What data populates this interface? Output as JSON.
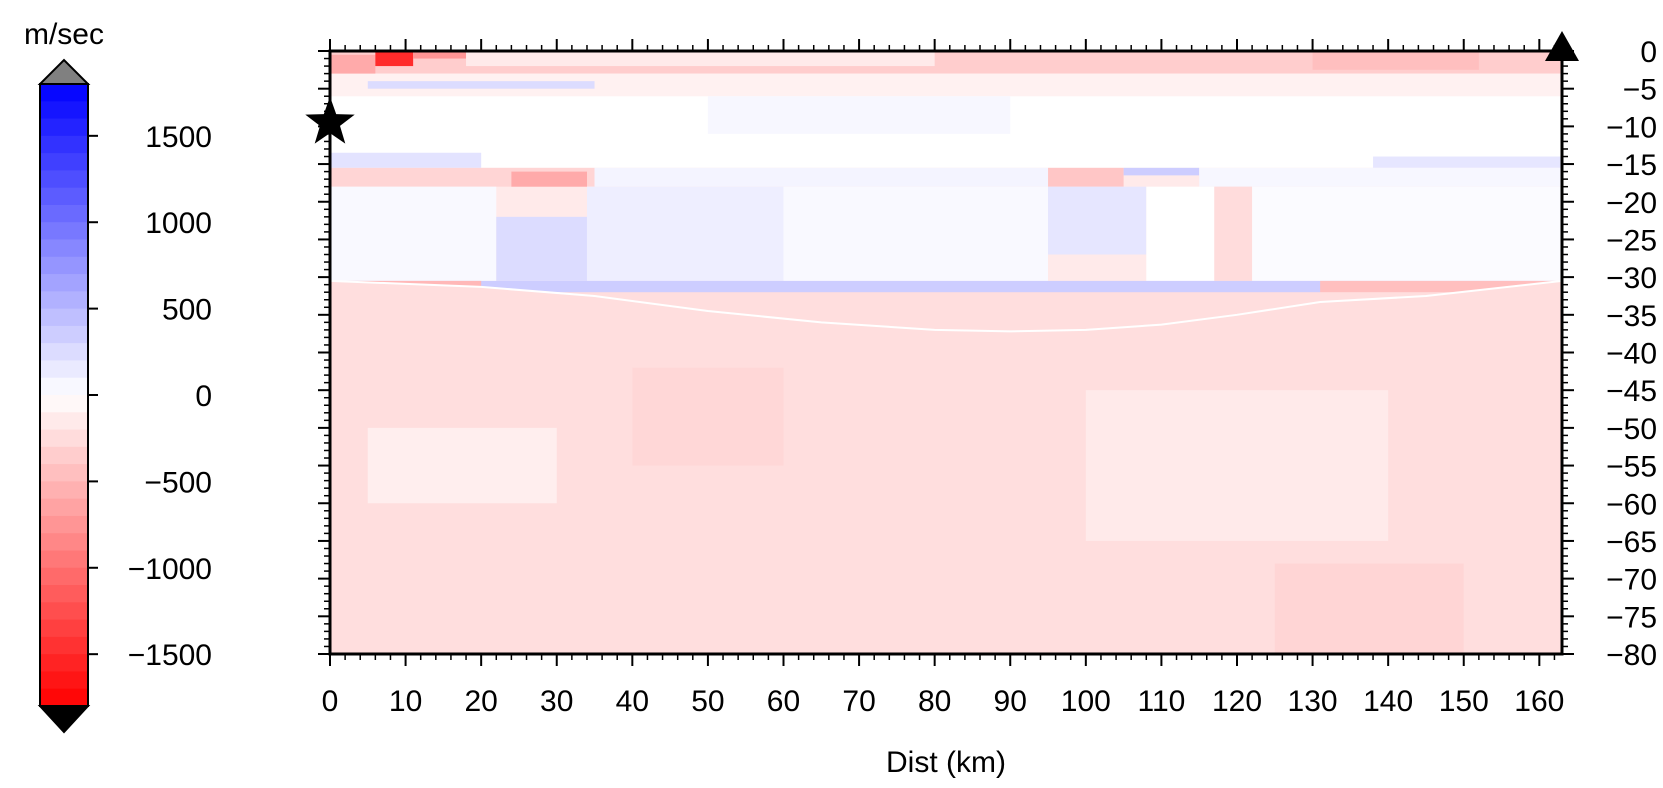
{
  "colorbar": {
    "unit_label": "m/sec",
    "range": [
      -1800,
      1800
    ],
    "ticks": [
      1500,
      1000,
      500,
      0,
      -500,
      -1000,
      -1500
    ],
    "tick_labels": [
      "1500",
      "1000",
      "500",
      "0",
      "−500",
      "−1000",
      "−1500"
    ],
    "high_color": "#0000ff",
    "mid_color": "#ffffff",
    "low_color": "#ff0000",
    "over_color": "#808080",
    "under_color": "#000000"
  },
  "chart_data": {
    "type": "heatmap",
    "title": "",
    "xlabel": "Dist (km)",
    "ylabel": "",
    "xlim": [
      0,
      163
    ],
    "ylim": [
      -80,
      0
    ],
    "x_ticks": [
      0,
      10,
      20,
      30,
      40,
      50,
      60,
      70,
      80,
      90,
      100,
      110,
      120,
      130,
      140,
      150,
      160
    ],
    "x_tick_labels": [
      "0",
      "10",
      "20",
      "30",
      "40",
      "50",
      "60",
      "70",
      "80",
      "90",
      "100",
      "110",
      "120",
      "130",
      "140",
      "150",
      "160"
    ],
    "y_ticks": [
      0,
      -5,
      -10,
      -15,
      -20,
      -25,
      -30,
      -35,
      -40,
      -45,
      -50,
      -55,
      -60,
      -65,
      -70,
      -75,
      -80
    ],
    "y_tick_labels": [
      "0",
      "−5",
      "−10",
      "−15",
      "−20",
      "−25",
      "−30",
      "−35",
      "−40",
      "−45",
      "−50",
      "−55",
      "−60",
      "−65",
      "−70",
      "−75",
      "−80"
    ],
    "y_axis_side": "right",
    "markers": [
      {
        "symbol": "star",
        "x": 0,
        "y": -9.5
      },
      {
        "symbol": "triangle",
        "x": 163,
        "y": 0
      }
    ],
    "moho_boundary": {
      "x": [
        0,
        20,
        35,
        50,
        65,
        80,
        90,
        100,
        110,
        120,
        131,
        145,
        163
      ],
      "y": [
        -30.5,
        -31.3,
        -32.5,
        -34.5,
        -36.0,
        -37.0,
        -37.2,
        -37.0,
        -36.3,
        -35.0,
        -33.3,
        -32.5,
        -30.5
      ]
    },
    "cells": [
      {
        "x0": 0,
        "x1": 163,
        "y0": -3,
        "y1": 0,
        "v": -350
      },
      {
        "x0": 0,
        "x1": 6,
        "y0": -4.5,
        "y1": -0.5,
        "v": -600
      },
      {
        "x0": 6,
        "x1": 11,
        "y0": -2,
        "y1": 0,
        "v": -1500
      },
      {
        "x0": 11,
        "x1": 18,
        "y0": -1,
        "y1": 0,
        "v": -750
      },
      {
        "x0": 18,
        "x1": 80,
        "y0": -2,
        "y1": 0,
        "v": -150
      },
      {
        "x0": 130,
        "x1": 152,
        "y0": -2.5,
        "y1": 0,
        "v": -450
      },
      {
        "x0": 0,
        "x1": 163,
        "y0": -6,
        "y1": -3,
        "v": -100
      },
      {
        "x0": 5,
        "x1": 35,
        "y0": -5,
        "y1": -4,
        "v": 250
      },
      {
        "x0": 0,
        "x1": 163,
        "y0": -15.5,
        "y1": -6,
        "v": 0
      },
      {
        "x0": 0,
        "x1": 20,
        "y0": -15.5,
        "y1": -13.5,
        "v": 200
      },
      {
        "x0": 50,
        "x1": 90,
        "y0": -11,
        "y1": -6,
        "v": 60
      },
      {
        "x0": 138,
        "x1": 163,
        "y0": -15.5,
        "y1": -14,
        "v": 180
      },
      {
        "x0": 0,
        "x1": 35,
        "y0": -18,
        "y1": -15.5,
        "v": -300
      },
      {
        "x0": 24,
        "x1": 34,
        "y0": -18,
        "y1": -16,
        "v": -600
      },
      {
        "x0": 35,
        "x1": 95,
        "y0": -18,
        "y1": -15.5,
        "v": 80
      },
      {
        "x0": 95,
        "x1": 105,
        "y0": -18,
        "y1": -15.5,
        "v": -400
      },
      {
        "x0": 105,
        "x1": 115,
        "y0": -16.5,
        "y1": -15.5,
        "v": 350
      },
      {
        "x0": 115,
        "x1": 163,
        "y0": -18,
        "y1": -15.5,
        "v": 60
      },
      {
        "x0": 0,
        "x1": 22,
        "y0": -30.5,
        "y1": -18,
        "v": 40
      },
      {
        "x0": 22,
        "x1": 34,
        "y0": -30.5,
        "y1": -22,
        "v": 250
      },
      {
        "x0": 34,
        "x1": 60,
        "y0": -30.5,
        "y1": -18,
        "v": 120
      },
      {
        "x0": 60,
        "x1": 95,
        "y0": -30.5,
        "y1": -18,
        "v": 40
      },
      {
        "x0": 95,
        "x1": 108,
        "y0": -27,
        "y1": -18,
        "v": 180
      },
      {
        "x0": 108,
        "x1": 117,
        "y0": -30.5,
        "y1": -18,
        "v": 0
      },
      {
        "x0": 117,
        "x1": 122,
        "y0": -30.5,
        "y1": -18,
        "v": -250
      },
      {
        "x0": 122,
        "x1": 163,
        "y0": -30.5,
        "y1": -18,
        "v": 30
      },
      {
        "x0": 0,
        "x1": 163,
        "y0": -37.2,
        "y1": -30.5,
        "v": 350
      },
      {
        "x0": 0,
        "x1": 20,
        "y0": -32,
        "y1": -30.5,
        "v": -500
      },
      {
        "x0": 131,
        "x1": 163,
        "y0": -33.5,
        "y1": -30.5,
        "v": -450
      },
      {
        "x0": 80,
        "x1": 130,
        "y0": -35,
        "y1": -33,
        "v": 600
      },
      {
        "x0": 0,
        "x1": 163,
        "y0": -80,
        "y1": -32,
        "v": -230
      },
      {
        "x0": 40,
        "x1": 60,
        "y0": -55,
        "y1": -40,
        "v": -280
      },
      {
        "x0": 100,
        "x1": 140,
        "y0": -65,
        "y1": -45,
        "v": -150
      },
      {
        "x0": 5,
        "x1": 30,
        "y0": -60,
        "y1": -50,
        "v": -120
      },
      {
        "x0": 125,
        "x1": 150,
        "y0": -80,
        "y1": -68,
        "v": -300
      }
    ]
  }
}
